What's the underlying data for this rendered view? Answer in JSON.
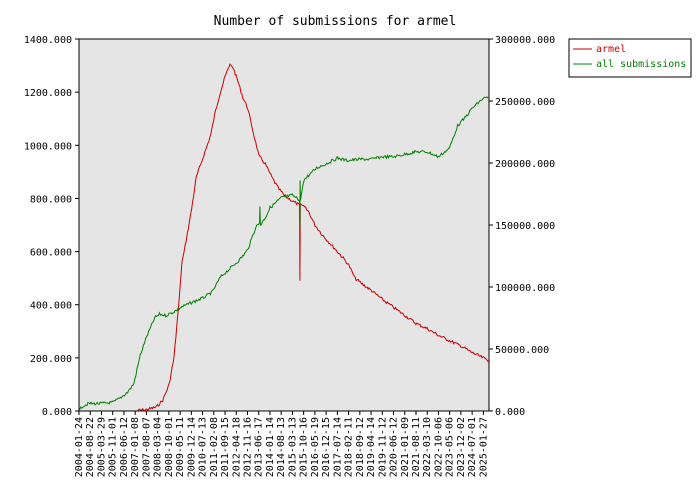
{
  "chart_data": {
    "type": "line",
    "title": "Number of submissions for armel",
    "grid": false,
    "legend_position": "top-right",
    "background_color": "#e5e5e5",
    "y_left": {
      "min": 0,
      "max": 1400,
      "ticks": [
        0,
        200,
        400,
        600,
        800,
        1000,
        1200,
        1400
      ],
      "tick_labels": [
        "0.000",
        "200.000",
        "400.000",
        "600.000",
        "800.000",
        "1000.000",
        "1200.000",
        "1400.000"
      ]
    },
    "y_right": {
      "min": 0,
      "max": 300000,
      "ticks": [
        0,
        50000,
        100000,
        150000,
        200000,
        250000,
        300000
      ],
      "tick_labels": [
        "0.000",
        "50000.000",
        "100000.000",
        "150000.000",
        "200000.000",
        "250000.000",
        "300000.000"
      ]
    },
    "x_domain": [
      "2004-01-24",
      "2025-05-20"
    ],
    "x_tick_labels": [
      "2004-01-24",
      "2004-08-22",
      "2005-03-29",
      "2005-11-01",
      "2006-06-12",
      "2007-01-08",
      "2007-08-07",
      "2008-03-04",
      "2008-10-01",
      "2009-05-11",
      "2009-12-14",
      "2010-07-13",
      "2011-02-08",
      "2011-09-15",
      "2012-04-18",
      "2012-11-16",
      "2013-06-17",
      "2014-01-14",
      "2014-08-13",
      "2015-03-13",
      "2015-10-16",
      "2016-05-19",
      "2016-12-15",
      "2017-07-14",
      "2018-02-11",
      "2018-09-12",
      "2019-04-14",
      "2019-11-12",
      "2020-06-12",
      "2021-01-09",
      "2021-08-11",
      "2022-03-10",
      "2022-10-06",
      "2023-05-06",
      "2023-12-02",
      "2024-07-01",
      "2025-01-27"
    ],
    "series": [
      {
        "name": "armel",
        "axis": "left",
        "color": "#cc0000",
        "points": [
          [
            "2007-02-01",
            2
          ],
          [
            "2007-08-01",
            5
          ],
          [
            "2008-02-01",
            15
          ],
          [
            "2008-06-01",
            40
          ],
          [
            "2008-10-01",
            100
          ],
          [
            "2009-01-01",
            200
          ],
          [
            "2009-04-01",
            400
          ],
          [
            "2009-06-01",
            560
          ],
          [
            "2009-08-01",
            620
          ],
          [
            "2009-12-01",
            760
          ],
          [
            "2010-03-01",
            880
          ],
          [
            "2010-07-01",
            950
          ],
          [
            "2010-12-01",
            1040
          ],
          [
            "2011-03-01",
            1130
          ],
          [
            "2011-06-01",
            1200
          ],
          [
            "2011-09-01",
            1260
          ],
          [
            "2011-12-01",
            1305
          ],
          [
            "2012-02-01",
            1290
          ],
          [
            "2012-05-01",
            1240
          ],
          [
            "2012-08-01",
            1180
          ],
          [
            "2012-11-01",
            1140
          ],
          [
            "2013-02-01",
            1060
          ],
          [
            "2013-06-01",
            960
          ],
          [
            "2013-10-01",
            930
          ],
          [
            "2014-02-01",
            880
          ],
          [
            "2014-06-01",
            840
          ],
          [
            "2014-10-01",
            810
          ],
          [
            "2015-03-01",
            790
          ],
          [
            "2015-07-15",
            775
          ],
          [
            "2015-07-20",
            490
          ],
          [
            "2015-07-28",
            780
          ],
          [
            "2015-10-01",
            770
          ],
          [
            "2016-01-01",
            750
          ],
          [
            "2016-05-01",
            700
          ],
          [
            "2016-10-01",
            660
          ],
          [
            "2017-04-01",
            620
          ],
          [
            "2017-10-01",
            580
          ],
          [
            "2018-02-01",
            550
          ],
          [
            "2018-06-01",
            500
          ],
          [
            "2018-10-01",
            480
          ],
          [
            "2019-04-01",
            455
          ],
          [
            "2019-11-01",
            420
          ],
          [
            "2020-06-01",
            390
          ],
          [
            "2021-01-01",
            360
          ],
          [
            "2021-08-01",
            330
          ],
          [
            "2022-03-01",
            310
          ],
          [
            "2022-10-01",
            285
          ],
          [
            "2023-05-01",
            265
          ],
          [
            "2023-12-01",
            245
          ],
          [
            "2024-07-01",
            220
          ],
          [
            "2025-01-27",
            200
          ],
          [
            "2025-05-20",
            190
          ]
        ]
      },
      {
        "name": "all submissions",
        "axis": "right",
        "color": "#008000",
        "points": [
          [
            "2004-01-24",
            0
          ],
          [
            "2004-04-01",
            4000
          ],
          [
            "2004-08-01",
            6000
          ],
          [
            "2005-03-01",
            6000
          ],
          [
            "2005-11-01",
            7000
          ],
          [
            "2006-03-01",
            10000
          ],
          [
            "2006-08-01",
            15000
          ],
          [
            "2006-12-01",
            22000
          ],
          [
            "2007-04-01",
            45000
          ],
          [
            "2007-08-01",
            60000
          ],
          [
            "2008-01-01",
            75000
          ],
          [
            "2008-04-01",
            78000
          ],
          [
            "2008-08-01",
            77000
          ],
          [
            "2009-01-01",
            80000
          ],
          [
            "2009-06-01",
            84000
          ],
          [
            "2010-01-01",
            88000
          ],
          [
            "2010-07-01",
            91000
          ],
          [
            "2011-01-01",
            96000
          ],
          [
            "2011-06-01",
            108000
          ],
          [
            "2012-01-01",
            116000
          ],
          [
            "2012-06-01",
            122000
          ],
          [
            "2012-11-01",
            130000
          ],
          [
            "2013-04-01",
            148000
          ],
          [
            "2013-06-15",
            152000
          ],
          [
            "2013-06-20",
            165000
          ],
          [
            "2013-07-01",
            150000
          ],
          [
            "2013-10-01",
            156000
          ],
          [
            "2014-01-01",
            164000
          ],
          [
            "2014-08-01",
            172000
          ],
          [
            "2015-03-01",
            174000
          ],
          [
            "2015-07-15",
            170000
          ],
          [
            "2015-07-20",
            148000
          ],
          [
            "2015-07-25",
            186000
          ],
          [
            "2015-08-01",
            170000
          ],
          [
            "2015-10-01",
            186000
          ],
          [
            "2016-01-01",
            190000
          ],
          [
            "2016-06-01",
            196000
          ],
          [
            "2017-01-01",
            200000
          ],
          [
            "2017-07-01",
            204000
          ],
          [
            "2018-01-01",
            202000
          ],
          [
            "2018-09-01",
            203000
          ],
          [
            "2019-04-01",
            203000
          ],
          [
            "2019-11-01",
            205000
          ],
          [
            "2020-06-01",
            205000
          ],
          [
            "2021-01-01",
            207000
          ],
          [
            "2021-08-01",
            209000
          ],
          [
            "2022-03-01",
            209000
          ],
          [
            "2022-10-01",
            205000
          ],
          [
            "2023-05-01",
            212000
          ],
          [
            "2023-10-01",
            230000
          ],
          [
            "2024-03-01",
            237000
          ],
          [
            "2024-07-01",
            244000
          ],
          [
            "2025-01-27",
            252000
          ],
          [
            "2025-05-20",
            253000
          ]
        ]
      }
    ]
  }
}
